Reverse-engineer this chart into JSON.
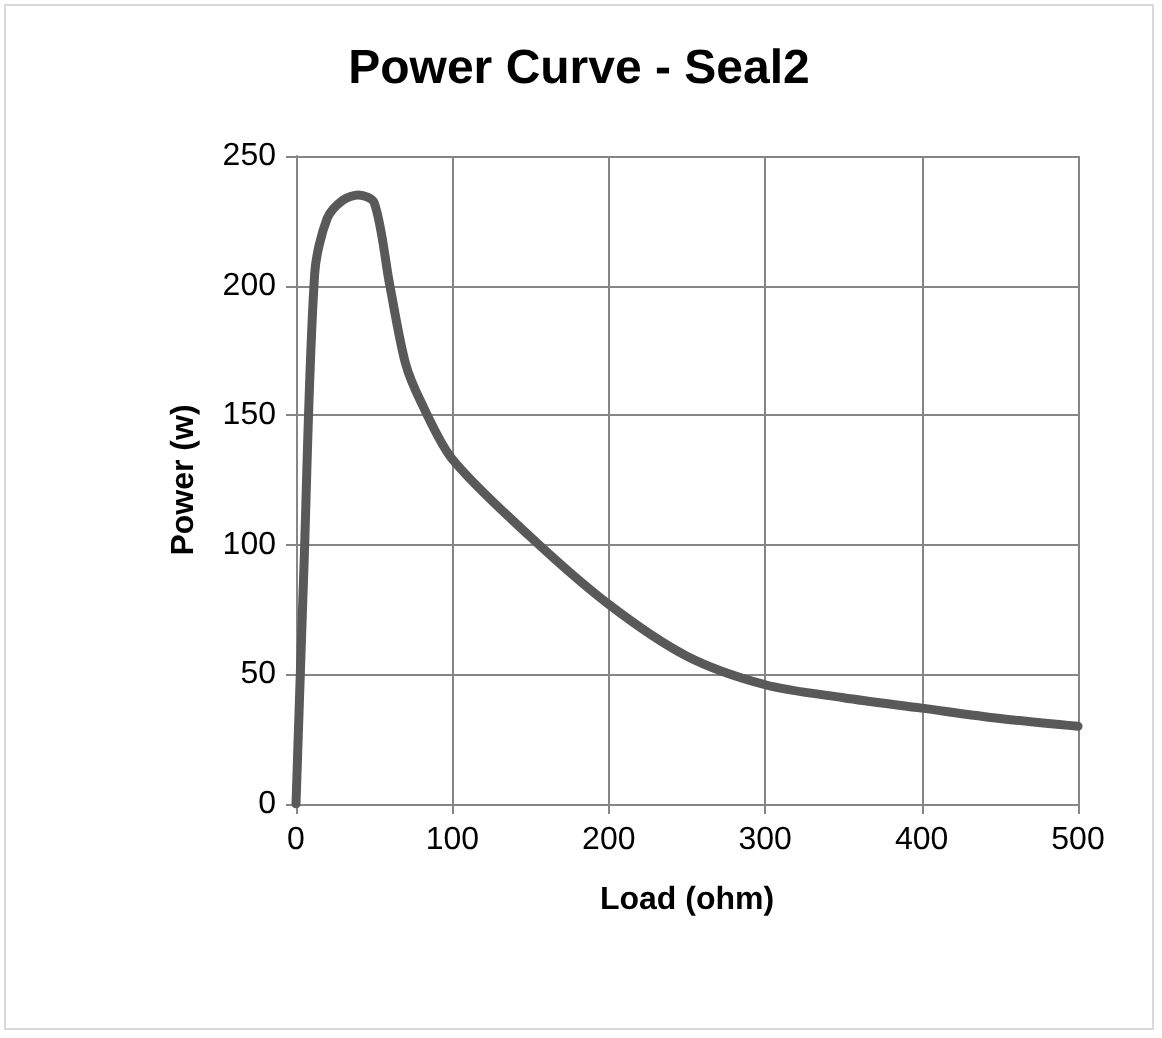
{
  "chart_data": {
    "type": "line",
    "title": "Power Curve - Seal2",
    "xlabel": "Load (ohm)",
    "ylabel": "Power (w)",
    "series": [
      {
        "color": "#595959",
        "x": [
          0,
          5,
          12,
          20,
          30,
          40,
          50,
          60,
          70,
          80,
          100,
          150,
          200,
          250,
          300,
          350,
          400,
          450,
          500
        ],
        "values": [
          0,
          90,
          205,
          226,
          233,
          235,
          232,
          200,
          170,
          155,
          133,
          103,
          77,
          57,
          46,
          41,
          37,
          33,
          30
        ]
      }
    ],
    "xlim": [
      0,
      500
    ],
    "xticks": [
      0,
      100,
      200,
      300,
      400,
      500
    ],
    "ylim": [
      0,
      250
    ],
    "yticks": [
      0,
      50,
      100,
      150,
      200,
      250
    ],
    "grid": true,
    "marker": "none",
    "line_style": "solid"
  }
}
